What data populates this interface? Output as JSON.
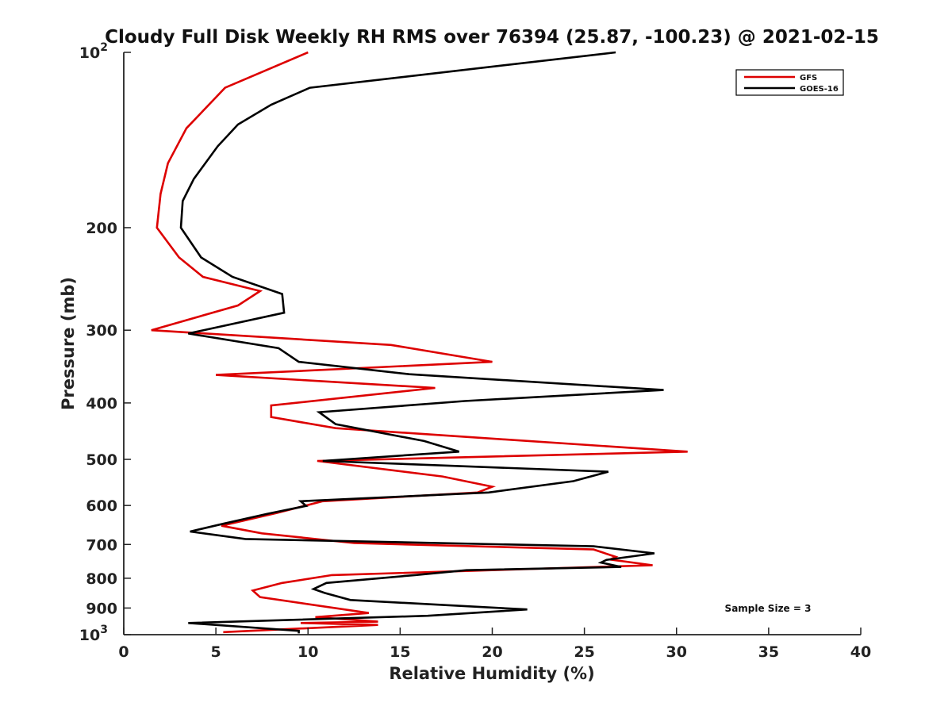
{
  "chart_data": {
    "type": "line",
    "title": "Cloudy Full Disk Weekly RH RMS over 76394 (25.87, -100.23) @ 2021-02-15",
    "xlabel": "Relative Humidity (%)",
    "ylabel": "Pressure (mb)",
    "xlim": [
      0,
      40
    ],
    "ylim": [
      100,
      1000
    ],
    "y_scale": "log",
    "y_reversed": true,
    "grid": false,
    "legend_position": "top-right",
    "x_ticks": [
      "0",
      "5",
      "10",
      "15",
      "20",
      "25",
      "30",
      "35",
      "40"
    ],
    "y_ticks": [
      {
        "value": 100,
        "base": "10",
        "exp": "2"
      },
      {
        "value": 200,
        "label": "200"
      },
      {
        "value": 300,
        "label": "300"
      },
      {
        "value": 400,
        "label": "400"
      },
      {
        "value": 500,
        "label": "500"
      },
      {
        "value": 600,
        "label": "600"
      },
      {
        "value": 700,
        "label": "700"
      },
      {
        "value": 800,
        "label": "800"
      },
      {
        "value": 900,
        "label": "900"
      },
      {
        "value": 1000,
        "base": "10",
        "exp": "3"
      }
    ],
    "annotation": "Sample Size = 3",
    "series": [
      {
        "name": "GFS",
        "color": "#dd0000",
        "points": [
          [
            10.0,
            100
          ],
          [
            5.5,
            115
          ],
          [
            3.4,
            135
          ],
          [
            2.4,
            155
          ],
          [
            2.0,
            175
          ],
          [
            1.8,
            200
          ],
          [
            3.0,
            225
          ],
          [
            4.3,
            243
          ],
          [
            7.4,
            257
          ],
          [
            6.2,
            272
          ],
          [
            1.5,
            300
          ],
          [
            14.5,
            318
          ],
          [
            20.0,
            340
          ],
          [
            5.0,
            358
          ],
          [
            16.9,
            377
          ],
          [
            8.0,
            404
          ],
          [
            8.0,
            423
          ],
          [
            11.5,
            442
          ],
          [
            30.6,
            485
          ],
          [
            10.5,
            503
          ],
          [
            17.3,
            535
          ],
          [
            20.0,
            557
          ],
          [
            19.2,
            570
          ],
          [
            10.8,
            590
          ],
          [
            8.3,
            618
          ],
          [
            5.3,
            650
          ],
          [
            7.5,
            670
          ],
          [
            12.5,
            696
          ],
          [
            25.5,
            714
          ],
          [
            26.7,
            735
          ],
          [
            26.4,
            743
          ],
          [
            28.7,
            760
          ],
          [
            11.3,
            790
          ],
          [
            8.6,
            815
          ],
          [
            7.0,
            840
          ],
          [
            7.4,
            862
          ],
          [
            13.3,
            918
          ],
          [
            10.4,
            933
          ],
          [
            13.8,
            950
          ],
          [
            9.6,
            955
          ],
          [
            13.8,
            962
          ],
          [
            5.4,
            990
          ]
        ]
      },
      {
        "name": "GOES-16",
        "color": "#000000",
        "points": [
          [
            26.7,
            100
          ],
          [
            10.1,
            115
          ],
          [
            8.0,
            123
          ],
          [
            6.2,
            133
          ],
          [
            5.1,
            145
          ],
          [
            3.8,
            165
          ],
          [
            3.2,
            180
          ],
          [
            3.1,
            200
          ],
          [
            4.2,
            225
          ],
          [
            5.9,
            243
          ],
          [
            8.6,
            260
          ],
          [
            8.7,
            280
          ],
          [
            3.5,
            304
          ],
          [
            8.4,
            322
          ],
          [
            9.5,
            340
          ],
          [
            15.5,
            357
          ],
          [
            29.3,
            380
          ],
          [
            18.5,
            397
          ],
          [
            10.6,
            415
          ],
          [
            11.5,
            435
          ],
          [
            16.3,
            465
          ],
          [
            18.2,
            485
          ],
          [
            10.8,
            503
          ],
          [
            26.3,
            525
          ],
          [
            24.4,
            545
          ],
          [
            19.8,
            570
          ],
          [
            9.6,
            590
          ],
          [
            9.9,
            601
          ],
          [
            7.8,
            620
          ],
          [
            5.4,
            645
          ],
          [
            3.6,
            665
          ],
          [
            6.6,
            685
          ],
          [
            25.5,
            705
          ],
          [
            28.8,
            725
          ],
          [
            26.2,
            744
          ],
          [
            25.9,
            752
          ],
          [
            27.0,
            765
          ],
          [
            18.6,
            775
          ],
          [
            15.8,
            790
          ],
          [
            11.0,
            815
          ],
          [
            10.3,
            835
          ],
          [
            10.9,
            848
          ],
          [
            12.3,
            872
          ],
          [
            21.9,
            905
          ],
          [
            16.5,
            928
          ],
          [
            3.5,
            955
          ],
          [
            9.5,
            985
          ],
          [
            9.5,
            995
          ]
        ]
      }
    ]
  }
}
